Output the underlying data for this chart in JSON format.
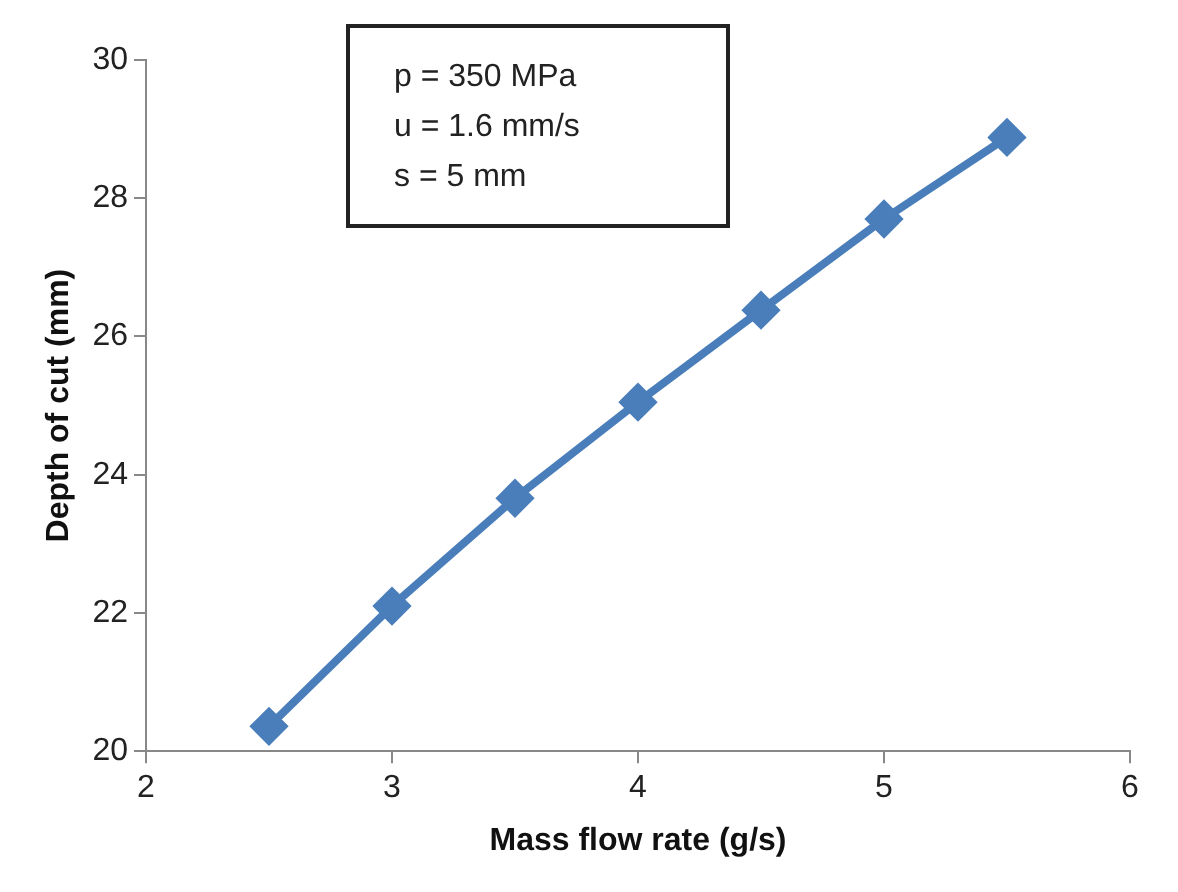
{
  "chart_data": {
    "type": "line",
    "xlabel": "Mass flow rate (g/s)",
    "ylabel": "Depth of cut (mm)",
    "x": [
      2.5,
      3,
      3.5,
      4,
      4.5,
      5,
      5.5
    ],
    "series": [
      {
        "color": "#4a7ebb",
        "values": [
          20.36,
          22.1,
          23.66,
          25.05,
          26.38,
          27.7,
          28.88
        ]
      }
    ],
    "xlim": [
      2,
      6
    ],
    "xticks": [
      2,
      3,
      4,
      5,
      6
    ],
    "ylim": [
      20,
      30
    ],
    "yticks": [
      20,
      22,
      24,
      26,
      28,
      30
    ],
    "grid": false,
    "legend": false,
    "marker": "diamond",
    "line_style": "solid",
    "annotations": [
      "p = 350 MPa",
      "u = 1.6 mm/s",
      "s = 5 mm"
    ]
  }
}
